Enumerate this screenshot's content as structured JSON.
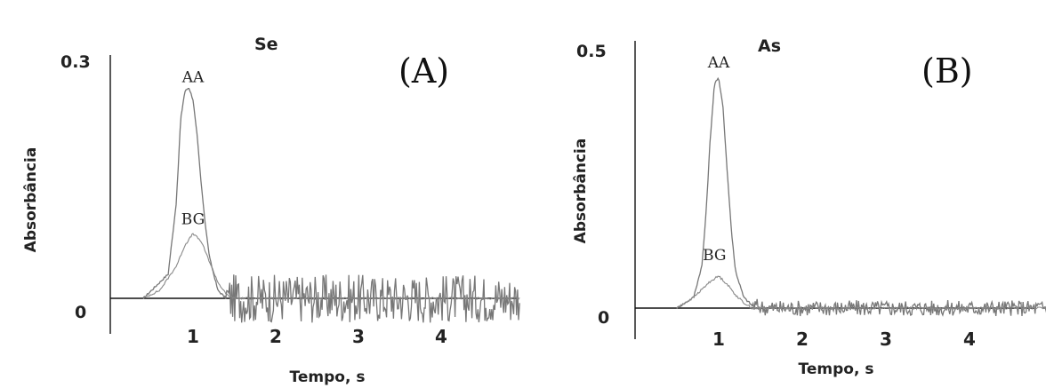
{
  "chart_data": [
    {
      "type": "line",
      "panel_label": "(A)",
      "title": "Se",
      "xlabel": "Tempo, s",
      "ylabel": "Absorbância",
      "y_tick_labels": [
        "0.3",
        "0"
      ],
      "x_ticks": [
        1,
        2,
        3,
        4
      ],
      "xlim": [
        0,
        5
      ],
      "ylim": [
        -0.035,
        0.3
      ],
      "annotations": [
        {
          "text": "AA",
          "x": 1.0,
          "y": 0.26
        },
        {
          "text": "BG",
          "x": 1.0,
          "y": 0.085
        }
      ],
      "series": [
        {
          "name": "AA",
          "color": "#777777",
          "x": [
            0.4,
            0.55,
            0.7,
            0.8,
            0.85,
            0.9,
            0.95,
            1.0,
            1.05,
            1.1,
            1.15,
            1.2,
            1.3,
            1.4,
            1.5,
            2.0,
            3.0,
            4.0,
            4.95
          ],
          "y": [
            0.0,
            0.015,
            0.03,
            0.12,
            0.22,
            0.255,
            0.26,
            0.245,
            0.2,
            0.14,
            0.09,
            0.05,
            0.01,
            0.0,
            0.0,
            0.0,
            0.0,
            0.0,
            0.0
          ],
          "noise_from_x": 1.4,
          "noise_amplitude": 0.03
        },
        {
          "name": "BG",
          "color": "#888888",
          "x": [
            0.4,
            0.6,
            0.8,
            0.9,
            1.0,
            1.1,
            1.2,
            1.3,
            1.4,
            1.5,
            4.95
          ],
          "y": [
            0.0,
            0.01,
            0.04,
            0.065,
            0.08,
            0.07,
            0.045,
            0.02,
            0.005,
            0.0,
            0.0
          ]
        }
      ]
    },
    {
      "type": "line",
      "panel_label": "(B)",
      "title": "As",
      "xlabel": "Tempo, s",
      "ylabel": "Absorbância",
      "y_tick_labels": [
        "0.5",
        "0"
      ],
      "x_ticks": [
        1,
        2,
        3,
        4
      ],
      "xlim": [
        0,
        4.95
      ],
      "ylim": [
        -0.02,
        0.5
      ],
      "annotations": [
        {
          "text": "AA",
          "x": 1.0,
          "y": 0.44
        },
        {
          "text": "BG",
          "x": 0.95,
          "y": 0.08
        }
      ],
      "series": [
        {
          "name": "AA",
          "color": "#777777",
          "x": [
            0.5,
            0.7,
            0.8,
            0.85,
            0.9,
            0.95,
            1.0,
            1.05,
            1.1,
            1.15,
            1.2,
            1.3,
            1.4,
            1.6,
            2.0,
            3.0,
            4.0,
            4.95
          ],
          "y": [
            0.0,
            0.02,
            0.08,
            0.18,
            0.32,
            0.42,
            0.43,
            0.38,
            0.26,
            0.15,
            0.07,
            0.02,
            0.005,
            0.0,
            0.0,
            0.0,
            0.0,
            0.0
          ],
          "noise_from_x": 1.4,
          "noise_amplitude": 0.015
        },
        {
          "name": "BG",
          "color": "#888888",
          "x": [
            0.5,
            0.7,
            0.9,
            1.0,
            1.1,
            1.2,
            1.3,
            1.4,
            4.95
          ],
          "y": [
            0.0,
            0.02,
            0.05,
            0.06,
            0.045,
            0.025,
            0.01,
            0.0,
            0.0
          ]
        }
      ]
    }
  ]
}
